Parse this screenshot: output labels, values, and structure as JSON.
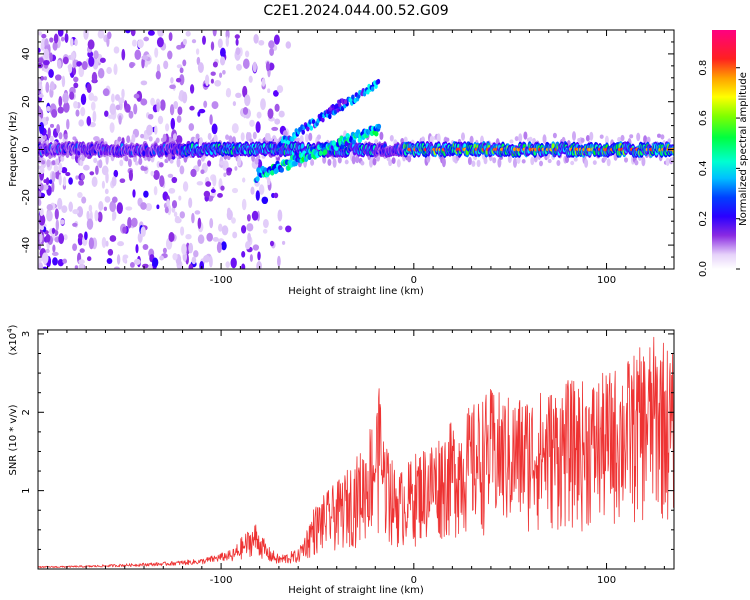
{
  "title": "C2E1.2024.044.00.52.G09",
  "chart_data": [
    {
      "type": "heatmap",
      "title": "",
      "xlabel": "Height of straight line (km)",
      "ylabel": "Frequency (Hz)",
      "xlim": [
        -195,
        135
      ],
      "ylim": [
        -50,
        50
      ],
      "x_ticks": [
        -100,
        0,
        100
      ],
      "x_tick_labels": [
        "-100",
        "0",
        "100"
      ],
      "y_ticks": [
        -40,
        -20,
        0,
        20,
        40
      ],
      "y_tick_labels": [
        "-40",
        "-20",
        "0",
        "20",
        "40"
      ],
      "colorbar": {
        "label": "Normalized spectral amplitude",
        "range": [
          0,
          0.95
        ],
        "ticks": [
          0.0,
          0.2,
          0.4,
          0.6,
          0.8
        ],
        "tick_labels": [
          "0.0",
          "0.2",
          "0.4",
          "0.6",
          "0.8"
        ],
        "colormap": [
          "#ffffff",
          "#dcc3f8",
          "#8a2be2",
          "#5a00ff",
          "#0000ff",
          "#00a0ff",
          "#00ffff",
          "#00ff80",
          "#00ff00",
          "#80ff00",
          "#ffff00",
          "#ffa000",
          "#ff2020",
          "#ff0080"
        ]
      },
      "features": [
        {
          "name": "main carrier",
          "x_range": [
            -195,
            135
          ],
          "freq": 0
        },
        {
          "name": "rising arc",
          "x_range": [
            -80,
            -18
          ],
          "freq_range": [
            -11,
            28
          ]
        },
        {
          "name": "upper streak",
          "x_range": [
            -45,
            -35
          ],
          "freq_range": [
            15,
            22
          ]
        }
      ]
    },
    {
      "type": "line",
      "title": "",
      "xlabel": "Height of straight line (km)",
      "ylabel": "SNR (10 * v/v)",
      "y_multiplier": "(x10",
      "y_multiplier_exp": "4",
      "y_multiplier_close": ")",
      "xlim": [
        -195,
        135
      ],
      "ylim": [
        0,
        3.05
      ],
      "x_ticks": [
        -100,
        0,
        100
      ],
      "x_tick_labels": [
        "-100",
        "0",
        "100"
      ],
      "y_ticks": [
        1,
        2,
        3
      ],
      "y_tick_labels": [
        "1",
        "2",
        "3"
      ],
      "color": "#ee3333",
      "envelope": {
        "x": [
          -195,
          -170,
          -150,
          -130,
          -110,
          -95,
          -88,
          -82,
          -76,
          -70,
          -60,
          -52,
          -45,
          -38,
          -32,
          -26,
          -22,
          -18,
          -15,
          -10,
          -7,
          -3,
          0,
          10,
          20,
          30,
          40,
          50,
          60,
          70,
          80,
          90,
          100,
          110,
          120,
          128,
          135
        ],
        "y": [
          0.03,
          0.04,
          0.06,
          0.08,
          0.12,
          0.22,
          0.45,
          0.6,
          0.3,
          0.18,
          0.25,
          0.75,
          0.95,
          1.1,
          1.3,
          1.5,
          1.85,
          2.2,
          1.6,
          1.25,
          1.2,
          1.3,
          1.4,
          1.6,
          1.8,
          2.0,
          2.2,
          2.1,
          2.15,
          2.2,
          2.3,
          2.3,
          2.4,
          2.55,
          2.75,
          2.9,
          2.6
        ]
      }
    }
  ]
}
